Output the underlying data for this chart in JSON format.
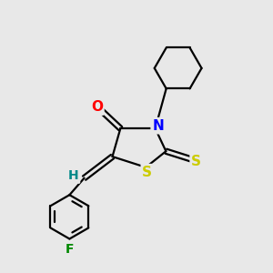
{
  "background_color": "#e8e8e8",
  "bond_color": "#000000",
  "bond_width": 1.6,
  "atom_labels": {
    "O": {
      "color": "#ff0000",
      "fontsize": 11,
      "fontweight": "bold"
    },
    "N": {
      "color": "#0000ff",
      "fontsize": 11,
      "fontweight": "bold"
    },
    "S_ring": {
      "color": "#cccc00",
      "fontsize": 11,
      "fontweight": "bold"
    },
    "S_thioxo": {
      "color": "#cccc00",
      "fontsize": 11,
      "fontweight": "bold"
    },
    "H": {
      "color": "#008888",
      "fontsize": 10,
      "fontweight": "bold"
    },
    "F": {
      "color": "#008800",
      "fontsize": 10,
      "fontweight": "bold"
    }
  },
  "figsize": [
    3.0,
    3.0
  ],
  "dpi": 100
}
